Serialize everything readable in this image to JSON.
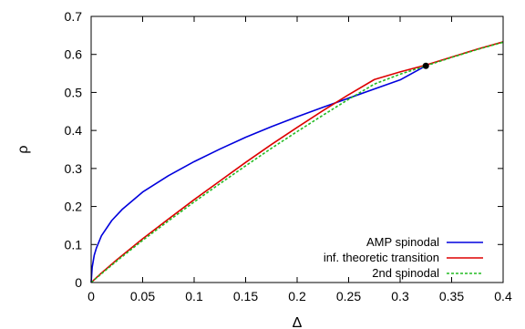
{
  "chart_data": {
    "type": "line",
    "title": "",
    "xlabel": "Δ",
    "ylabel": "ρ",
    "xlim": [
      0,
      0.4
    ],
    "ylim": [
      0,
      0.7
    ],
    "x_ticks": [
      0,
      0.05,
      0.1,
      0.15,
      0.2,
      0.25,
      0.3,
      0.35,
      0.4
    ],
    "x_tick_labels": [
      "0",
      "0.05",
      "0.1",
      "0.15",
      "0.2",
      "0.25",
      "0.3",
      "0.35",
      "0.4"
    ],
    "y_ticks": [
      0,
      0.1,
      0.2,
      0.3,
      0.4,
      0.5,
      0.6,
      0.7
    ],
    "y_tick_labels": [
      "0",
      "0.1",
      "0.2",
      "0.3",
      "0.4",
      "0.5",
      "0.6",
      "0.7"
    ],
    "grid": false,
    "legend_position": "bottom-right",
    "series": [
      {
        "name": "AMP spinodal",
        "color": "#0000dd",
        "dash": "solid",
        "x": [
          0,
          0.001,
          0.003,
          0.005,
          0.01,
          0.02,
          0.03,
          0.05,
          0.075,
          0.1,
          0.125,
          0.15,
          0.175,
          0.2,
          0.225,
          0.25,
          0.275,
          0.3,
          0.325
        ],
        "y": [
          0,
          0.04,
          0.072,
          0.09,
          0.123,
          0.163,
          0.192,
          0.238,
          0.281,
          0.318,
          0.351,
          0.382,
          0.41,
          0.436,
          0.461,
          0.485,
          0.509,
          0.533,
          0.57
        ]
      },
      {
        "name": "inf. theoretic transition",
        "color": "#dd0000",
        "dash": "solid",
        "x": [
          0,
          0.01,
          0.025,
          0.05,
          0.075,
          0.1,
          0.125,
          0.15,
          0.175,
          0.2,
          0.225,
          0.25,
          0.275,
          0.3,
          0.325,
          0.35,
          0.375,
          0.4
        ],
        "y": [
          0,
          0.025,
          0.06,
          0.115,
          0.167,
          0.218,
          0.267,
          0.316,
          0.363,
          0.408,
          0.452,
          0.494,
          0.534,
          0.554,
          0.572,
          0.593,
          0.614,
          0.633
        ]
      },
      {
        "name": "2nd spinodal",
        "color": "#22bb22",
        "dash": "dashed",
        "x": [
          0,
          0.01,
          0.025,
          0.05,
          0.075,
          0.1,
          0.125,
          0.15,
          0.175,
          0.2,
          0.225,
          0.25,
          0.275,
          0.3,
          0.325,
          0.35,
          0.375,
          0.4
        ],
        "y": [
          0,
          0.023,
          0.057,
          0.111,
          0.162,
          0.212,
          0.26,
          0.307,
          0.353,
          0.397,
          0.44,
          0.482,
          0.522,
          0.548,
          0.57,
          0.592,
          0.613,
          0.632
        ]
      }
    ],
    "markers": [
      {
        "x": 0.325,
        "y": 0.57,
        "color": "#000000"
      }
    ]
  }
}
